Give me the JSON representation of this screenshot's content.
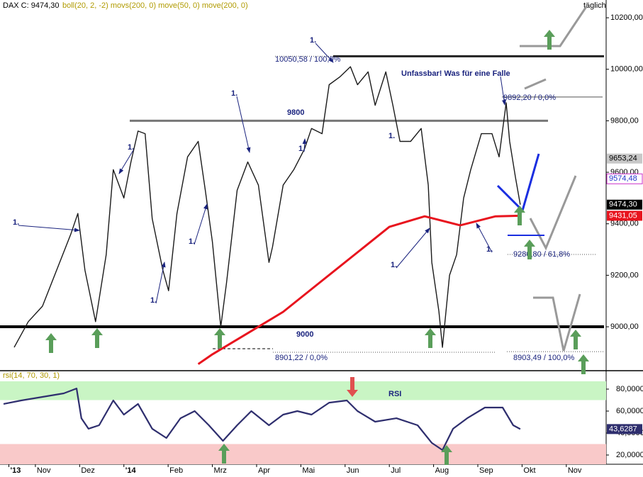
{
  "chart_data": [
    {
      "type": "candle-line",
      "header": {
        "symbol": "DAX C: 9474,30",
        "indicators": "boll(20, 2, -2) movs(200, 0) move(50, 0) move(200, 0)"
      },
      "period": "täglich",
      "xlim": [
        0.2,
        13.9
      ],
      "xticks": [
        {
          "value": 0.4,
          "label": "'13"
        },
        {
          "value": 1,
          "label": "Nov"
        },
        {
          "value": 2,
          "label": "Dez"
        },
        {
          "value": 3,
          "label": "'14"
        },
        {
          "value": 4,
          "label": "Feb"
        },
        {
          "value": 5,
          "label": "Mrz"
        },
        {
          "value": 6,
          "label": "Apr"
        },
        {
          "value": 7,
          "label": "Mai"
        },
        {
          "value": 8,
          "label": "Jun"
        },
        {
          "value": 9,
          "label": "Jul"
        },
        {
          "value": 10,
          "label": "Aug"
        },
        {
          "value": 11,
          "label": "Sep"
        },
        {
          "value": 12,
          "label": "Okt"
        },
        {
          "value": 13,
          "label": "Nov"
        }
      ],
      "ylim": [
        8835,
        10269
      ],
      "yticks": [
        {
          "value": 9000,
          "label": "9000,00"
        },
        {
          "value": 9200,
          "label": "9200,00"
        },
        {
          "value": 9400,
          "label": "9400,00"
        },
        {
          "value": 9600,
          "label": "9600,00"
        },
        {
          "value": 9800,
          "label": "9800,00"
        },
        {
          "value": 10000,
          "label": "10000,00"
        },
        {
          "value": 10200,
          "label": "10200,00"
        }
      ],
      "series": [
        {
          "name": "DAX",
          "color": "#1a1a1a",
          "x": [
            0.52,
            0.84,
            1.16,
            1.48,
            1.8,
            1.96,
            2.12,
            2.36,
            2.6,
            2.76,
            3.0,
            3.16,
            3.32,
            3.48,
            3.64,
            3.88,
            4.01,
            4.2,
            4.44,
            4.68,
            4.84,
            5.0,
            5.19,
            5.32,
            5.56,
            5.8,
            6.04,
            6.28,
            6.36,
            6.6,
            6.84,
            7.08,
            7.24,
            7.48,
            7.64,
            7.88,
            8.12,
            8.28,
            8.52,
            8.68,
            8.92,
            9.08,
            9.24,
            9.48,
            9.72,
            9.88,
            9.96,
            10.12,
            10.2,
            10.36,
            10.52,
            10.68,
            10.84,
            11.08,
            11.32,
            11.48,
            11.64,
            11.72,
            11.85,
            11.96
          ],
          "values": [
            8920,
            9020,
            9080,
            9220,
            9360,
            9440,
            9220,
            9020,
            9280,
            9610,
            9500,
            9640,
            9760,
            9750,
            9420,
            9220,
            9140,
            9440,
            9660,
            9720,
            9530,
            9330,
            9000,
            9170,
            9530,
            9640,
            9550,
            9250,
            9310,
            9550,
            9610,
            9690,
            9770,
            9750,
            9940,
            9970,
            10010,
            9940,
            9990,
            9860,
            9990,
            9860,
            9720,
            9720,
            9770,
            9550,
            9250,
            9060,
            8920,
            9200,
            9280,
            9500,
            9610,
            9750,
            9750,
            9660,
            9870,
            9720,
            9580,
            9474.3
          ]
        },
        {
          "name": "move(200, 0)",
          "color": "#e8141e",
          "x": [
            4.68,
            5.0,
            5.8,
            6.6,
            7.4,
            8.2,
            9.0,
            9.8,
            10.6,
            11.4,
            11.96
          ],
          "values": [
            8855,
            8893,
            8975,
            9058,
            9168,
            9278,
            9388,
            9429,
            9394,
            9429,
            9431.05
          ]
        }
      ],
      "levels": [
        {
          "value": 10050.58,
          "label": "10050,58 / 100,0%"
        },
        {
          "value": 9892.2,
          "label": "9892,20 / 0,0%"
        },
        {
          "value": 9800,
          "label": "9800"
        },
        {
          "value": 9280.8,
          "label": "9280,80 / 61,8%"
        },
        {
          "value": 9000,
          "label": "9000"
        },
        {
          "value": 8901.22,
          "label": "8901,22 / 0,0%"
        },
        {
          "value": 8903.49,
          "label": "8903,49 / 100,0%"
        }
      ],
      "price_tags": [
        {
          "value": 9653.24,
          "label": "9653,24",
          "color": "#c8c8c8"
        },
        {
          "value": 9574.48,
          "label": "9574,48",
          "color": "#2233cc"
        },
        {
          "value": 9474.3,
          "label": "9474,30",
          "color": "#000000"
        },
        {
          "value": 9431.05,
          "label": "9431,05",
          "color": "#e8141e"
        }
      ],
      "annotations": [
        "1.",
        "1.",
        "1.",
        "1.",
        "1.",
        "1.",
        "1.",
        "1.",
        "1.",
        "1.",
        "Unfassbar! Was für eine Falle"
      ]
    },
    {
      "type": "rsi",
      "title": "rsi(14, 70, 30, 1)",
      "label": "RSI",
      "upper": 70,
      "lower": 30,
      "ylim": [
        11.6,
        87.1
      ],
      "yticks": [
        {
          "value": 20,
          "label": "20,0000"
        },
        {
          "value": 40,
          "label": "40,0000"
        },
        {
          "value": 60,
          "label": "60,0000"
        },
        {
          "value": 80,
          "label": "80,0000"
        }
      ],
      "series": [
        {
          "name": "RSI",
          "color": "#2e2e6e",
          "x": [
            0.28,
            0.68,
            1.16,
            1.64,
            1.93,
            2.04,
            2.2,
            2.44,
            2.76,
            3.0,
            3.32,
            3.64,
            3.96,
            4.28,
            4.6,
            4.92,
            5.24,
            5.56,
            5.88,
            6.28,
            6.6,
            6.92,
            7.24,
            7.64,
            8.04,
            8.28,
            8.68,
            9.16,
            9.64,
            9.96,
            10.2,
            10.44,
            10.76,
            11.16,
            11.56,
            11.8,
            11.96
          ],
          "values": [
            66.5,
            69.7,
            72.9,
            76.1,
            80.6,
            53.5,
            43.9,
            47.1,
            69.7,
            56.8,
            66.5,
            43.9,
            35.5,
            53.5,
            60.0,
            47.1,
            32.9,
            47.1,
            60.0,
            47.1,
            56.8,
            60.0,
            56.8,
            67.7,
            69.7,
            60.0,
            50.3,
            53.5,
            47.1,
            31.0,
            24.5,
            43.9,
            53.5,
            63.2,
            63.2,
            47.1,
            43.6287
          ]
        }
      ],
      "value_label": "43,6287"
    }
  ]
}
